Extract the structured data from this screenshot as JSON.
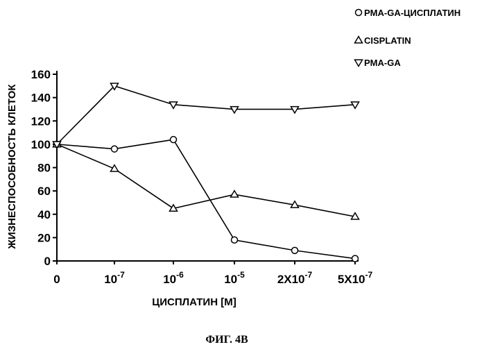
{
  "chart_data": {
    "type": "line",
    "categories": [
      "0",
      "10^-7",
      "10^-6",
      "10^-5",
      "2X10^-7",
      "5X10^-7"
    ],
    "x_tick_labels": [
      {
        "base": "0",
        "exp": ""
      },
      {
        "base": "10",
        "exp": "-7"
      },
      {
        "base": "10",
        "exp": "-6"
      },
      {
        "base": "10",
        "exp": "-5"
      },
      {
        "base": "2X10",
        "exp": "-7"
      },
      {
        "base": "5X10",
        "exp": "-7"
      }
    ],
    "y_ticks": [
      0,
      20,
      40,
      60,
      80,
      100,
      120,
      140,
      160
    ],
    "ylim": [
      0,
      160
    ],
    "xlabel": "ЦИСПЛАТИН [M]",
    "ylabel": "ЖИЗНЕСПОСОБНОСТЬ КЛЕТОК",
    "caption": "ФИГ. 4B",
    "grid": false,
    "legend_position": "top-right",
    "series": [
      {
        "name": "PMA-GA-ЦИСПЛАТИН",
        "marker": "circle",
        "values": [
          100,
          96,
          104,
          18,
          9,
          2
        ]
      },
      {
        "name": "CISPLATIN",
        "marker": "triangle-up",
        "values": [
          100,
          79,
          45,
          57,
          48,
          38
        ]
      },
      {
        "name": "PMA-GA",
        "marker": "triangle-down",
        "values": [
          100,
          150,
          134,
          130,
          130,
          134
        ]
      }
    ],
    "colors": {
      "line": "#000000",
      "marker_fill": "#ffffff"
    }
  }
}
